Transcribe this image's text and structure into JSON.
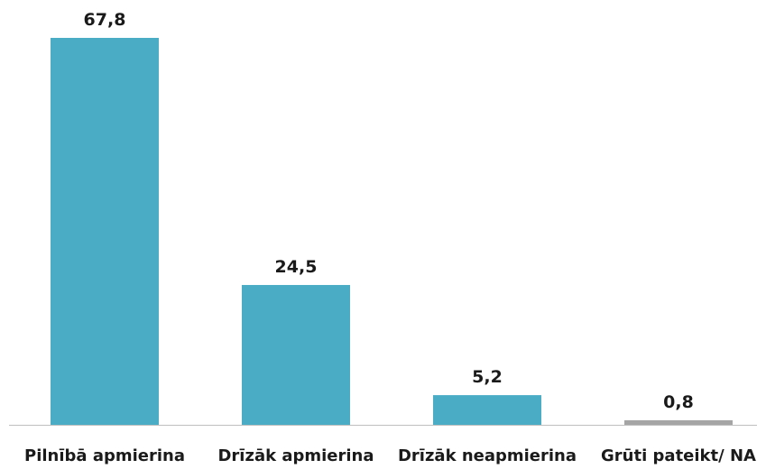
{
  "chart_data": {
    "type": "bar",
    "categories": [
      "Pilnībā apmierina",
      "Drīzāk apmierina",
      "Drīzāk neapmierina",
      "Grūti pateikt/ NA"
    ],
    "values": [
      67.8,
      24.5,
      5.2,
      0.8
    ],
    "value_labels": [
      "67,8",
      "24,5",
      "5,2",
      "0,8"
    ],
    "colors": [
      "#4bacc6",
      "#4bacc6",
      "#4bacc6",
      "#a5a5a5"
    ],
    "title": "",
    "xlabel": "",
    "ylabel": "",
    "ylim": [
      0,
      67.8
    ],
    "grid": false,
    "legend": "none",
    "axis_color": "#bfbfbf"
  }
}
